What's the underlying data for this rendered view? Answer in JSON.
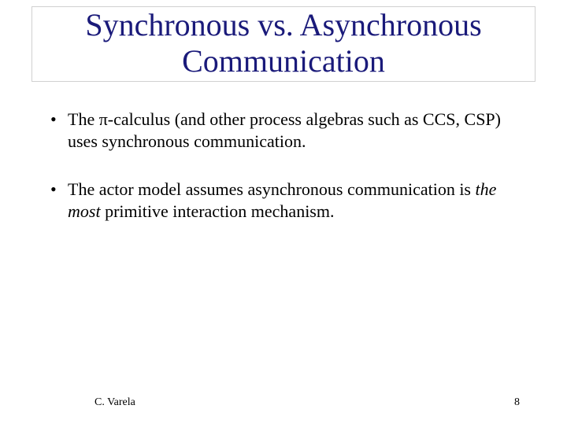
{
  "title_color": "#1a1a7a",
  "title_line1": "Synchronous vs. Asynchronous",
  "title_line2": "Communication",
  "bullet1": "The π-calculus (and other process algebras such as CCS, CSP) uses synchronous communication.",
  "bullet2_a": "The actor model assumes asynchronous communication is ",
  "bullet2_em": "the most",
  "bullet2_b": " primitive interaction mechanism.",
  "footer_author": "C. Varela",
  "footer_page": "8"
}
